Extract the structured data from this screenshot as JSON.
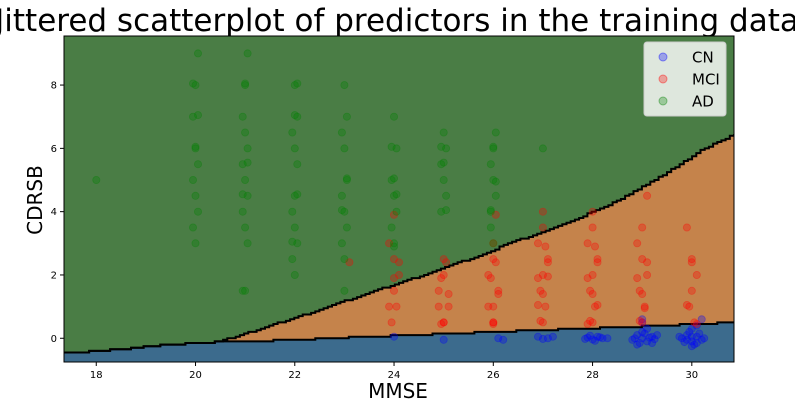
{
  "chart_data": {
    "type": "scatter",
    "title": "Jittered scatterplot of predictors in the training data",
    "xlabel": "MMSE",
    "ylabel": "CDRSB",
    "xlim": [
      17.35,
      30.85
    ],
    "ylim": [
      -0.75,
      9.55
    ],
    "xticks": [
      18,
      20,
      22,
      24,
      26,
      28,
      30
    ],
    "yticks": [
      0,
      2,
      4,
      6,
      8
    ],
    "grid": false,
    "legend_position": "top-right",
    "series": [
      {
        "name": "CN",
        "color": "#0000ff",
        "points": [
          [
            24.0,
            0.05
          ],
          [
            25.0,
            -0.05
          ],
          [
            26.1,
            0.0
          ],
          [
            26.2,
            -0.05
          ],
          [
            26.9,
            0.05
          ],
          [
            27.1,
            0.0
          ],
          [
            27.2,
            0.05
          ],
          [
            27.0,
            -0.02
          ],
          [
            27.9,
            0.02
          ],
          [
            28.0,
            -0.04
          ],
          [
            28.1,
            0.05
          ],
          [
            28.2,
            0.0
          ],
          [
            27.95,
            0.08
          ],
          [
            28.05,
            -0.08
          ],
          [
            28.15,
            0.03
          ],
          [
            28.3,
            0.0
          ],
          [
            27.85,
            -0.02
          ],
          [
            28.9,
            0.1
          ],
          [
            29.0,
            0.0
          ],
          [
            29.1,
            -0.1
          ],
          [
            29.2,
            0.05
          ],
          [
            28.8,
            -0.05
          ],
          [
            29.05,
            0.15
          ],
          [
            28.95,
            -0.15
          ],
          [
            29.15,
            0.02
          ],
          [
            29.25,
            -0.03
          ],
          [
            29.0,
            0.2
          ],
          [
            28.85,
            0.0
          ],
          [
            29.3,
            0.1
          ],
          [
            29.1,
            0.3
          ],
          [
            29.0,
            0.5
          ],
          [
            29.0,
            0.6
          ],
          [
            28.9,
            -0.2
          ],
          [
            29.2,
            -0.15
          ],
          [
            29.8,
            0.0
          ],
          [
            29.9,
            0.1
          ],
          [
            30.0,
            -0.1
          ],
          [
            30.1,
            0.05
          ],
          [
            30.2,
            -0.05
          ],
          [
            29.95,
            0.2
          ],
          [
            30.05,
            -0.2
          ],
          [
            30.15,
            0.15
          ],
          [
            29.85,
            -0.12
          ],
          [
            30.0,
            0.3
          ],
          [
            30.1,
            0.4
          ],
          [
            30.2,
            0.6
          ],
          [
            30.0,
            -0.25
          ],
          [
            30.25,
            0.0
          ],
          [
            29.75,
            0.05
          ],
          [
            30.1,
            -0.15
          ],
          [
            29.9,
            -0.05
          ],
          [
            30.0,
            0.05
          ]
        ]
      },
      {
        "name": "MCI",
        "color": "#ff0000",
        "points": [
          [
            23.1,
            2.4
          ],
          [
            23.9,
            3.0
          ],
          [
            24.0,
            2.5
          ],
          [
            24.1,
            2.0
          ],
          [
            24.0,
            1.5
          ],
          [
            24.05,
            1.0
          ],
          [
            23.95,
            0.5
          ],
          [
            24.1,
            2.4
          ],
          [
            24.0,
            1.9
          ],
          [
            23.9,
            1.0
          ],
          [
            24.0,
            3.9
          ],
          [
            25.0,
            2.5
          ],
          [
            25.0,
            2.0
          ],
          [
            24.9,
            1.5
          ],
          [
            25.1,
            1.0
          ],
          [
            25.0,
            0.5
          ],
          [
            25.05,
            2.4
          ],
          [
            24.95,
            1.9
          ],
          [
            25.1,
            1.4
          ],
          [
            24.9,
            1.0
          ],
          [
            25.0,
            0.5
          ],
          [
            24.95,
            0.45
          ],
          [
            26.0,
            3.0
          ],
          [
            26.0,
            2.5
          ],
          [
            25.9,
            2.0
          ],
          [
            26.1,
            1.5
          ],
          [
            26.0,
            1.0
          ],
          [
            26.0,
            0.5
          ],
          [
            26.05,
            2.4
          ],
          [
            25.95,
            1.9
          ],
          [
            26.1,
            1.4
          ],
          [
            25.9,
            1.0
          ],
          [
            26.0,
            0.5
          ],
          [
            26.05,
            3.9
          ],
          [
            26.0,
            0.45
          ],
          [
            27.0,
            4.0
          ],
          [
            27.0,
            3.5
          ],
          [
            26.9,
            3.0
          ],
          [
            27.1,
            2.5
          ],
          [
            27.0,
            2.0
          ],
          [
            26.95,
            1.5
          ],
          [
            27.05,
            1.0
          ],
          [
            27.0,
            0.5
          ],
          [
            27.1,
            2.4
          ],
          [
            26.9,
            1.9
          ],
          [
            27.0,
            1.4
          ],
          [
            27.05,
            2.9
          ],
          [
            26.95,
            0.55
          ],
          [
            27.1,
            1.95
          ],
          [
            26.9,
            1.05
          ],
          [
            28.0,
            4.0
          ],
          [
            28.0,
            3.5
          ],
          [
            27.9,
            3.0
          ],
          [
            28.1,
            2.5
          ],
          [
            28.0,
            2.0
          ],
          [
            27.95,
            1.5
          ],
          [
            28.05,
            1.0
          ],
          [
            28.0,
            0.5
          ],
          [
            28.1,
            2.4
          ],
          [
            27.9,
            1.9
          ],
          [
            28.0,
            1.4
          ],
          [
            28.05,
            2.9
          ],
          [
            27.95,
            0.55
          ],
          [
            28.1,
            1.05
          ],
          [
            27.9,
            0.45
          ],
          [
            29.1,
            4.5
          ],
          [
            29.0,
            3.5
          ],
          [
            28.9,
            3.0
          ],
          [
            29.0,
            2.5
          ],
          [
            29.1,
            2.0
          ],
          [
            28.95,
            1.5
          ],
          [
            29.05,
            1.0
          ],
          [
            29.0,
            0.5
          ],
          [
            29.1,
            2.4
          ],
          [
            28.9,
            1.9
          ],
          [
            29.0,
            1.4
          ],
          [
            29.05,
            0.95
          ],
          [
            28.95,
            0.55
          ],
          [
            29.9,
            3.5
          ],
          [
            30.0,
            2.5
          ],
          [
            30.1,
            2.0
          ],
          [
            30.0,
            1.5
          ],
          [
            29.95,
            1.0
          ],
          [
            30.05,
            0.5
          ],
          [
            30.0,
            2.4
          ],
          [
            29.9,
            1.05
          ],
          [
            30.1,
            0.45
          ]
        ]
      },
      {
        "name": "AD",
        "color": "#008000",
        "points": [
          [
            18.0,
            5.0
          ],
          [
            20.05,
            9.0
          ],
          [
            20.0,
            8.0
          ],
          [
            19.95,
            7.0
          ],
          [
            20.0,
            6.0
          ],
          [
            20.05,
            5.5
          ],
          [
            19.95,
            5.0
          ],
          [
            20.0,
            4.5
          ],
          [
            20.05,
            4.0
          ],
          [
            19.95,
            3.5
          ],
          [
            20.0,
            3.0
          ],
          [
            20.0,
            6.05
          ],
          [
            20.05,
            7.05
          ],
          [
            19.95,
            8.05
          ],
          [
            21.05,
            9.0
          ],
          [
            21.0,
            8.0
          ],
          [
            20.95,
            7.0
          ],
          [
            21.0,
            6.5
          ],
          [
            21.05,
            6.0
          ],
          [
            20.95,
            5.5
          ],
          [
            21.0,
            5.0
          ],
          [
            21.05,
            4.5
          ],
          [
            20.95,
            4.0
          ],
          [
            21.0,
            3.5
          ],
          [
            21.05,
            3.0
          ],
          [
            20.95,
            1.5
          ],
          [
            21.0,
            1.5
          ],
          [
            21.05,
            5.55
          ],
          [
            20.95,
            4.55
          ],
          [
            21.0,
            8.05
          ],
          [
            22.0,
            8.0
          ],
          [
            22.05,
            7.0
          ],
          [
            21.95,
            6.5
          ],
          [
            22.0,
            6.0
          ],
          [
            22.05,
            5.5
          ],
          [
            22.0,
            4.5
          ],
          [
            21.95,
            4.0
          ],
          [
            22.0,
            3.5
          ],
          [
            22.05,
            3.0
          ],
          [
            21.95,
            2.5
          ],
          [
            22.0,
            2.0
          ],
          [
            22.05,
            4.55
          ],
          [
            22.05,
            8.05
          ],
          [
            22.0,
            7.05
          ],
          [
            21.95,
            3.05
          ],
          [
            23.0,
            8.0
          ],
          [
            23.05,
            7.0
          ],
          [
            22.95,
            6.5
          ],
          [
            23.0,
            6.0
          ],
          [
            23.05,
            5.0
          ],
          [
            22.95,
            4.5
          ],
          [
            23.0,
            4.0
          ],
          [
            23.05,
            3.5
          ],
          [
            22.95,
            3.0
          ],
          [
            23.0,
            2.5
          ],
          [
            23.0,
            1.5
          ],
          [
            23.05,
            5.05
          ],
          [
            22.95,
            4.05
          ],
          [
            24.0,
            7.0
          ],
          [
            24.05,
            6.0
          ],
          [
            23.95,
            5.0
          ],
          [
            24.0,
            4.5
          ],
          [
            24.05,
            4.0
          ],
          [
            23.95,
            3.5
          ],
          [
            24.0,
            3.0
          ],
          [
            24.0,
            5.05
          ],
          [
            24.05,
            4.55
          ],
          [
            23.95,
            6.05
          ],
          [
            24.0,
            2.9
          ],
          [
            25.0,
            6.5
          ],
          [
            25.05,
            6.0
          ],
          [
            24.95,
            5.5
          ],
          [
            25.0,
            5.0
          ],
          [
            25.05,
            4.5
          ],
          [
            24.95,
            4.0
          ],
          [
            25.0,
            5.55
          ],
          [
            25.05,
            4.05
          ],
          [
            24.95,
            6.05
          ],
          [
            26.05,
            6.5
          ],
          [
            26.0,
            6.0
          ],
          [
            25.95,
            5.5
          ],
          [
            26.0,
            5.0
          ],
          [
            26.05,
            4.5
          ],
          [
            25.95,
            4.0
          ],
          [
            26.0,
            3.0
          ],
          [
            26.05,
            4.95
          ],
          [
            25.95,
            4.05
          ],
          [
            26.0,
            6.05
          ],
          [
            25.95,
            3.5
          ],
          [
            27.0,
            6.0
          ]
        ]
      }
    ],
    "regions": [
      {
        "name": "AD",
        "fill": "#4a7d45"
      },
      {
        "name": "MCI",
        "fill": "#c5834b"
      },
      {
        "name": "CN",
        "fill": "#3c6b8d"
      }
    ],
    "boundary_upper": [
      [
        17.35,
        -0.45
      ],
      [
        17.7,
        -0.45
      ],
      [
        18.0,
        -0.4
      ],
      [
        18.5,
        -0.35
      ],
      [
        19.0,
        -0.25
      ],
      [
        19.5,
        -0.2
      ],
      [
        20.0,
        -0.15
      ],
      [
        20.4,
        -0.12
      ],
      [
        20.8,
        0.05
      ],
      [
        21.5,
        0.4
      ],
      [
        22.5,
        0.9
      ],
      [
        23.5,
        1.45
      ],
      [
        24.5,
        1.95
      ],
      [
        25.5,
        2.5
      ],
      [
        26.5,
        3.1
      ],
      [
        27.5,
        3.65
      ],
      [
        28.5,
        4.35
      ],
      [
        29.5,
        5.25
      ],
      [
        30.2,
        5.95
      ],
      [
        30.85,
        6.45
      ]
    ],
    "boundary_lower": [
      [
        17.35,
        -0.45
      ],
      [
        17.7,
        -0.45
      ],
      [
        18.0,
        -0.4
      ],
      [
        18.5,
        -0.35
      ],
      [
        19.0,
        -0.25
      ],
      [
        19.5,
        -0.2
      ],
      [
        20.0,
        -0.15
      ],
      [
        20.4,
        -0.12
      ],
      [
        21.0,
        -0.1
      ],
      [
        22.0,
        -0.05
      ],
      [
        23.0,
        0.02
      ],
      [
        24.0,
        0.08
      ],
      [
        25.0,
        0.14
      ],
      [
        26.0,
        0.2
      ],
      [
        27.0,
        0.26
      ],
      [
        28.0,
        0.32
      ],
      [
        29.0,
        0.38
      ],
      [
        30.0,
        0.44
      ],
      [
        30.85,
        0.5
      ]
    ]
  }
}
